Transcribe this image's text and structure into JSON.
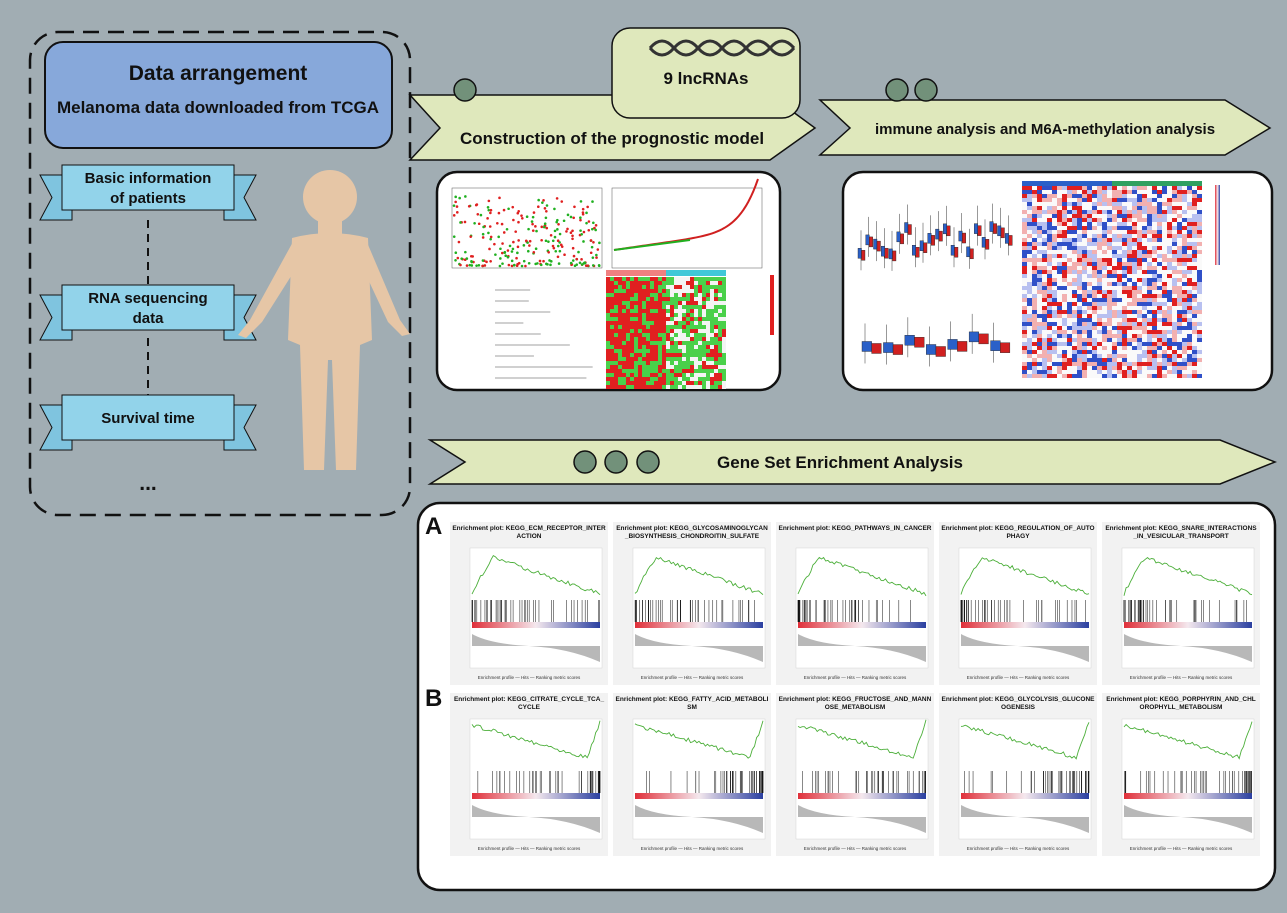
{
  "left": {
    "title": "Data arrangement",
    "subtitle": "Melanoma data downloaded from TCGA",
    "items": [
      [
        "Basic information",
        "of  patients"
      ],
      [
        "RNA sequencing",
        "data"
      ],
      [
        "Survival time"
      ]
    ],
    "more": "..."
  },
  "center": {
    "lncrnas": "9 lncRNAs",
    "step1": "Construction of the prognostic model",
    "step2": "immune analysis and M6A-methylation analysis",
    "step3": "Gene Set Enrichment Analysis"
  },
  "gsea": {
    "legend": "Enrichment profile — Hits — Ranking metric scores",
    "panels": [
      {
        "label": "A",
        "plots": [
          "Enrichment plot: KEGG_ECM_RECEPTOR_INTERACTION",
          "Enrichment plot: KEGG_GLYCOSAMINOGLYCAN_BIOSYNTHESIS_CHONDROITIN_SULFATE",
          "Enrichment plot: KEGG_PATHWAYS_IN_CANCER",
          "Enrichment plot: KEGG_REGULATION_OF_AUTOPHAGY",
          "Enrichment plot: KEGG_SNARE_INTERACTIONS_IN_VESICULAR_TRANSPORT"
        ]
      },
      {
        "label": "B",
        "plots": [
          "Enrichment plot: KEGG_CITRATE_CYCLE_TCA_CYCLE",
          "Enrichment plot: KEGG_FATTY_ACID_METABOLISM",
          "Enrichment plot: KEGG_FRUCTOSE_AND_MANNOSE_METABOLISM",
          "Enrichment plot: KEGG_GLYCOLYSIS_GLUCONEOGENESIS",
          "Enrichment plot: KEGG_PORPHYRIN_AND_CHLOROPHYLL_METABOLISM"
        ]
      }
    ]
  }
}
